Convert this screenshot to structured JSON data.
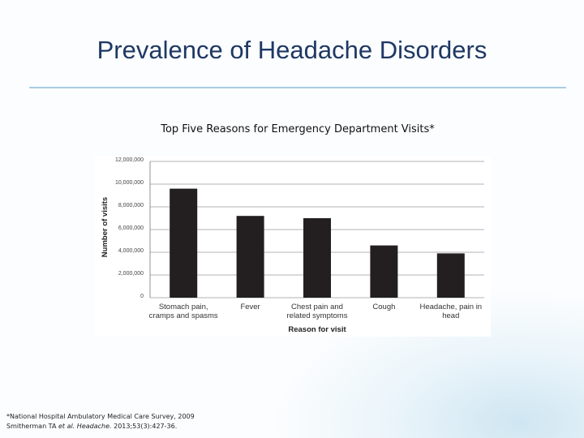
{
  "slide": {
    "title": "Prevalence of Headache Disorders",
    "footnote": [
      "*National Hospital Ambulatory Medical Care Survey, 2009",
      [
        {
          "text": "Smitherman TA "
        },
        {
          "text": "et al.",
          "italic": true
        },
        {
          "text": " "
        },
        {
          "text": "Headache.",
          "italic": true
        },
        {
          "text": " 2013;53(3):427-36."
        }
      ]
    ]
  },
  "chart_data": {
    "type": "bar",
    "title": "Top Five Reasons for Emergency Department Visits*",
    "x_label": "Reason for visit",
    "y_label": "Number of visits",
    "categories": [
      "Stomach pain, cramps and spasms",
      "Fever",
      "Chest pain and related symptoms",
      "Cough",
      "Headache, pain in head"
    ],
    "values": [
      9600000,
      7200000,
      7000000,
      4600000,
      3900000
    ],
    "color": "#231f20",
    "grid": true,
    "ylim": [
      0,
      12000000
    ],
    "yticks": [
      0,
      {
        "value": 2000000,
        "label": "2,000,000"
      },
      {
        "value": 4000000,
        "label": "4,000,000"
      },
      {
        "value": 6000000,
        "label": "6,000,000"
      },
      {
        "value": 8000000,
        "label": "8,000,000"
      },
      {
        "value": 10000000,
        "label": "10,000,000"
      },
      {
        "value": 12000000,
        "label": "12,000,000"
      }
    ]
  }
}
